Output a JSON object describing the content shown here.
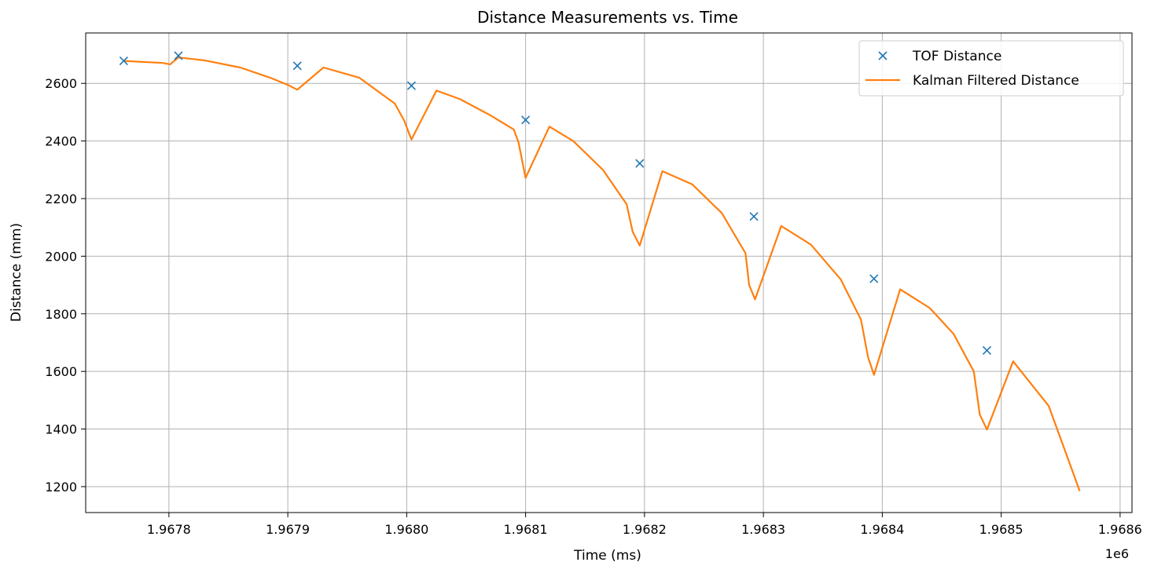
{
  "chart_data": {
    "type": "line",
    "title": "Distance Measurements vs. Time",
    "xlabel": "Time (ms)",
    "ylabel": "Distance (mm)",
    "x_offset_label": "1e6",
    "x_tick_values": [
      1.9678,
      1.9679,
      1.968,
      1.9681,
      1.9682,
      1.9683,
      1.9684,
      1.9685,
      1.9686
    ],
    "x_tick_labels": [
      "1.9678",
      "1.9679",
      "1.9680",
      "1.9681",
      "1.9682",
      "1.9683",
      "1.9684",
      "1.9685",
      "1.9686"
    ],
    "y_ticks": [
      1200,
      1400,
      1600,
      1800,
      2000,
      2200,
      2400,
      2600
    ],
    "xlim": [
      1.96773,
      1.96861
    ],
    "ylim": [
      1110,
      2775
    ],
    "grid": true,
    "legend_position": "top-right",
    "colors": {
      "tof": "#1f77b4",
      "kalman": "#ff7f0e",
      "grid": "#b0b0b0"
    },
    "series": [
      {
        "name": "TOF Distance",
        "marker": "x",
        "x": [
          1.967762,
          1.967808,
          1.967908,
          1.968004,
          1.9681,
          1.968196,
          1.968292,
          1.968393,
          1.968488
        ],
        "y": [
          2678,
          2696,
          2661,
          2592,
          2473,
          2322,
          2138,
          1922,
          1673
        ]
      },
      {
        "name": "Kalman Filtered Distance",
        "marker": "line",
        "x": [
          1.967762,
          1.967795,
          1.967801,
          1.967808,
          1.96783,
          1.96786,
          1.967885,
          1.9679,
          1.967908,
          1.96793,
          1.96796,
          1.96799,
          1.967998,
          1.968004,
          1.968025,
          1.968045,
          1.96807,
          1.96809,
          1.968094,
          1.9681,
          1.96812,
          1.96814,
          1.968165,
          1.968185,
          1.96819,
          1.968196,
          1.968215,
          1.96824,
          1.968265,
          1.968285,
          1.968288,
          1.968293,
          1.968315,
          1.96834,
          1.968365,
          1.968382,
          1.968388,
          1.968393,
          1.968415,
          1.96844,
          1.96846,
          1.968477,
          1.968482,
          1.968488,
          1.96851,
          1.96854,
          1.968566
        ],
        "y": [
          2678,
          2671,
          2666,
          2690,
          2680,
          2655,
          2620,
          2595,
          2578,
          2655,
          2620,
          2530,
          2470,
          2405,
          2575,
          2545,
          2490,
          2440,
          2395,
          2272,
          2450,
          2400,
          2300,
          2180,
          2085,
          2037,
          2295,
          2250,
          2150,
          2010,
          1900,
          1850,
          2105,
          2040,
          1920,
          1780,
          1650,
          1588,
          1885,
          1820,
          1730,
          1600,
          1450,
          1398,
          1635,
          1480,
          1185
        ]
      }
    ]
  }
}
